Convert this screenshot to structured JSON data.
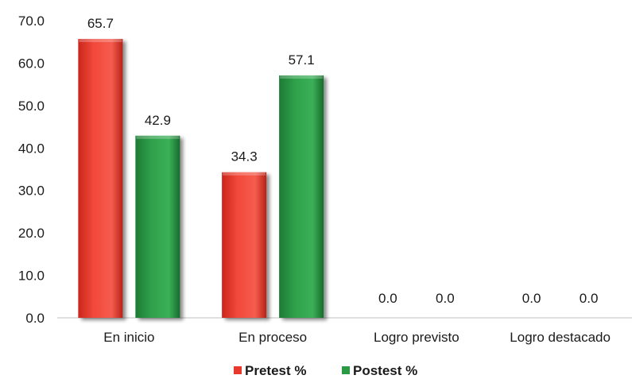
{
  "chart_data": {
    "type": "bar",
    "categories": [
      "En inicio",
      "En proceso",
      "Logro previsto",
      "Logro destacado"
    ],
    "series": [
      {
        "name": "Pretest %",
        "values": [
          65.7,
          34.3,
          0.0,
          0.0
        ],
        "color": "#f04a3c"
      },
      {
        "name": "Postest %",
        "values": [
          42.9,
          57.1,
          0.0,
          0.0
        ],
        "color": "#2f9e4a"
      }
    ],
    "ylim": [
      0,
      70
    ],
    "yticks": [
      "0.0",
      "10.0",
      "20.0",
      "30.0",
      "40.0",
      "50.0",
      "60.0",
      "70.0"
    ],
    "data_labels": [
      [
        "65.7",
        "34.3",
        "0.0",
        "0.0"
      ],
      [
        "42.9",
        "57.1",
        "0.0",
        "0.0"
      ]
    ],
    "grid": false,
    "legend_position": "bottom",
    "xlabel": "",
    "ylabel": "",
    "title": ""
  }
}
